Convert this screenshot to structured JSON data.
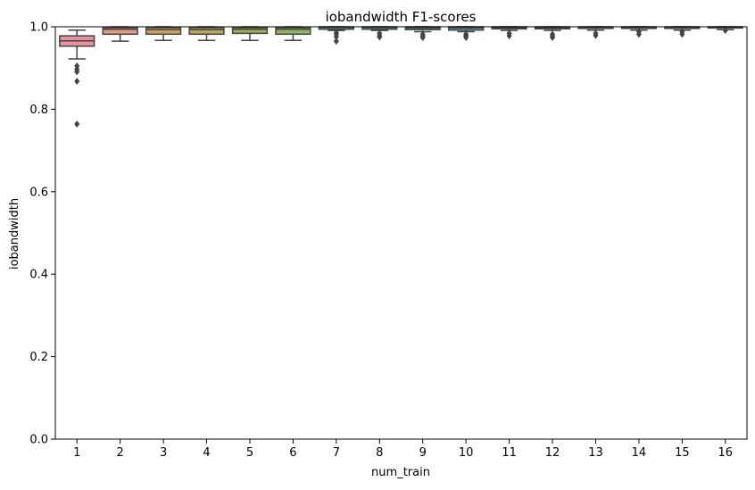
{
  "chart_data": {
    "type": "box",
    "title": "iobandwidth F1-scores",
    "xlabel": "num_train",
    "ylabel": "iobandwidth",
    "ylim": [
      0.0,
      1.0
    ],
    "yticks": [
      "0.0",
      "0.2",
      "0.4",
      "0.6",
      "0.8",
      "1.0"
    ],
    "grid": false,
    "categories": [
      "1",
      "2",
      "3",
      "4",
      "5",
      "6",
      "7",
      "8",
      "9",
      "10",
      "11",
      "12",
      "13",
      "14",
      "15",
      "16"
    ],
    "boxes": [
      {
        "category": "1",
        "whislo": 0.922,
        "q1": 0.953,
        "med": 0.966,
        "q3": 0.978,
        "whishi": 0.992,
        "fliers": [
          0.905,
          0.897,
          0.891,
          0.868,
          0.764
        ],
        "color": "#e8909e"
      },
      {
        "category": "2",
        "whislo": 0.965,
        "q1": 0.982,
        "med": 0.994,
        "q3": 0.998,
        "whishi": 1.0,
        "fliers": [],
        "color": "#e39a85"
      },
      {
        "category": "3",
        "whislo": 0.967,
        "q1": 0.982,
        "med": 0.993,
        "q3": 0.998,
        "whishi": 1.0,
        "fliers": [],
        "color": "#cfa160"
      },
      {
        "category": "4",
        "whislo": 0.967,
        "q1": 0.982,
        "med": 0.993,
        "q3": 0.998,
        "whishi": 1.0,
        "fliers": [],
        "color": "#b7a85a"
      },
      {
        "category": "5",
        "whislo": 0.967,
        "q1": 0.984,
        "med": 0.994,
        "q3": 0.998,
        "whishi": 1.0,
        "fliers": [],
        "color": "#a3ad59"
      },
      {
        "category": "6",
        "whislo": 0.967,
        "q1": 0.982,
        "med": 0.994,
        "q3": 0.998,
        "whishi": 1.0,
        "fliers": [],
        "color": "#8eb561"
      },
      {
        "category": "7",
        "whislo": 0.991,
        "q1": 0.994,
        "med": 0.998,
        "q3": 1.0,
        "whishi": 1.0,
        "fliers": [
          0.986,
          0.982,
          0.976,
          0.965
        ],
        "color": "#69b58a"
      },
      {
        "category": "8",
        "whislo": 0.991,
        "q1": 0.994,
        "med": 0.998,
        "q3": 1.0,
        "whishi": 1.0,
        "fliers": [
          0.984,
          0.978,
          0.975
        ],
        "color": "#5bb39e"
      },
      {
        "category": "9",
        "whislo": 0.988,
        "q1": 0.993,
        "med": 0.997,
        "q3": 1.0,
        "whishi": 1.0,
        "fliers": [
          0.982,
          0.977,
          0.974
        ],
        "color": "#56b0ad"
      },
      {
        "category": "10",
        "whislo": 0.988,
        "q1": 0.992,
        "med": 0.997,
        "q3": 1.0,
        "whishi": 1.0,
        "fliers": [
          0.982,
          0.978,
          0.974
        ],
        "color": "#58acbf"
      },
      {
        "category": "11",
        "whislo": 0.991,
        "q1": 0.995,
        "med": 0.998,
        "q3": 1.0,
        "whishi": 1.0,
        "fliers": [
          0.984,
          0.978
        ],
        "color": "#66a7d3"
      },
      {
        "category": "12",
        "whislo": 0.991,
        "q1": 0.995,
        "med": 0.998,
        "q3": 1.0,
        "whishi": 1.0,
        "fliers": [
          0.982,
          0.977,
          0.974
        ],
        "color": "#8ea3de"
      },
      {
        "category": "13",
        "whislo": 0.992,
        "q1": 0.996,
        "med": 0.999,
        "q3": 1.0,
        "whishi": 1.0,
        "fliers": [
          0.984,
          0.979
        ],
        "color": "#b49ddf"
      },
      {
        "category": "14",
        "whislo": 0.992,
        "q1": 0.996,
        "med": 0.999,
        "q3": 1.0,
        "whishi": 1.0,
        "fliers": [
          0.988,
          0.982
        ],
        "color": "#cd97d5"
      },
      {
        "category": "15",
        "whislo": 0.992,
        "q1": 0.996,
        "med": 0.999,
        "q3": 1.0,
        "whishi": 1.0,
        "fliers": [
          0.988,
          0.982
        ],
        "color": "#e08fc4"
      },
      {
        "category": "16",
        "whislo": 0.993,
        "q1": 0.997,
        "med": 0.999,
        "q3": 1.0,
        "whishi": 1.0,
        "fliers": [
          0.991
        ],
        "color": "#e88fb0"
      }
    ],
    "colors": {
      "line": "#444444",
      "flier": "#444444",
      "axes": "#000000"
    }
  }
}
